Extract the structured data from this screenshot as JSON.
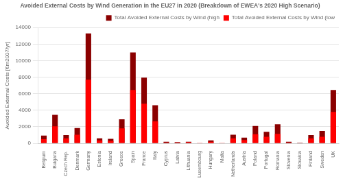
{
  "chart_data": {
    "type": "bar",
    "title": "Avoided External Costs by Wind Generation in the EU27 in 2020 (Breakdown of EWEA's 2020 High Scenario)",
    "ylabel": "Avoided External Costs [€m2007/yr]",
    "categories": [
      "Belgium",
      "Bulgaria",
      "Czech Rep.",
      "Denmark",
      "Germany",
      "Estonia",
      "Ireland",
      "Greece",
      "Spain",
      "France",
      "Italy",
      "Cyprus",
      "Latvia",
      "Lithuania",
      "Luxembourg",
      "Hungary",
      "Malta",
      "Netherlands",
      "Austria",
      "Poland",
      "Portugal",
      "Romania",
      "Slovenia",
      "Slovakia",
      "Finland",
      "Sweden",
      "UK"
    ],
    "series": [
      {
        "name": "Total Avoided External Costs by Wind (high",
        "color": "#8B0000",
        "values": [
          950,
          3450,
          1000,
          1850,
          13300,
          600,
          550,
          2900,
          11000,
          7950,
          4600,
          200,
          150,
          200,
          50,
          350,
          50,
          1050,
          700,
          2100,
          1400,
          2300,
          200,
          100,
          1000,
          1500,
          6450
        ]
      },
      {
        "name": "Total Avoided External Costs by Wind (low",
        "color": "#FF0000",
        "values": [
          500,
          2050,
          600,
          1050,
          7700,
          350,
          300,
          1800,
          6450,
          4800,
          2650,
          100,
          80,
          130,
          25,
          200,
          25,
          600,
          400,
          1100,
          800,
          1150,
          100,
          50,
          600,
          800,
          3800
        ]
      }
    ],
    "ylim": [
      0,
      14000
    ],
    "yticks": [
      0,
      2000,
      4000,
      6000,
      8000,
      10000,
      12000,
      14000
    ],
    "grid": true,
    "legend": "upper right"
  }
}
